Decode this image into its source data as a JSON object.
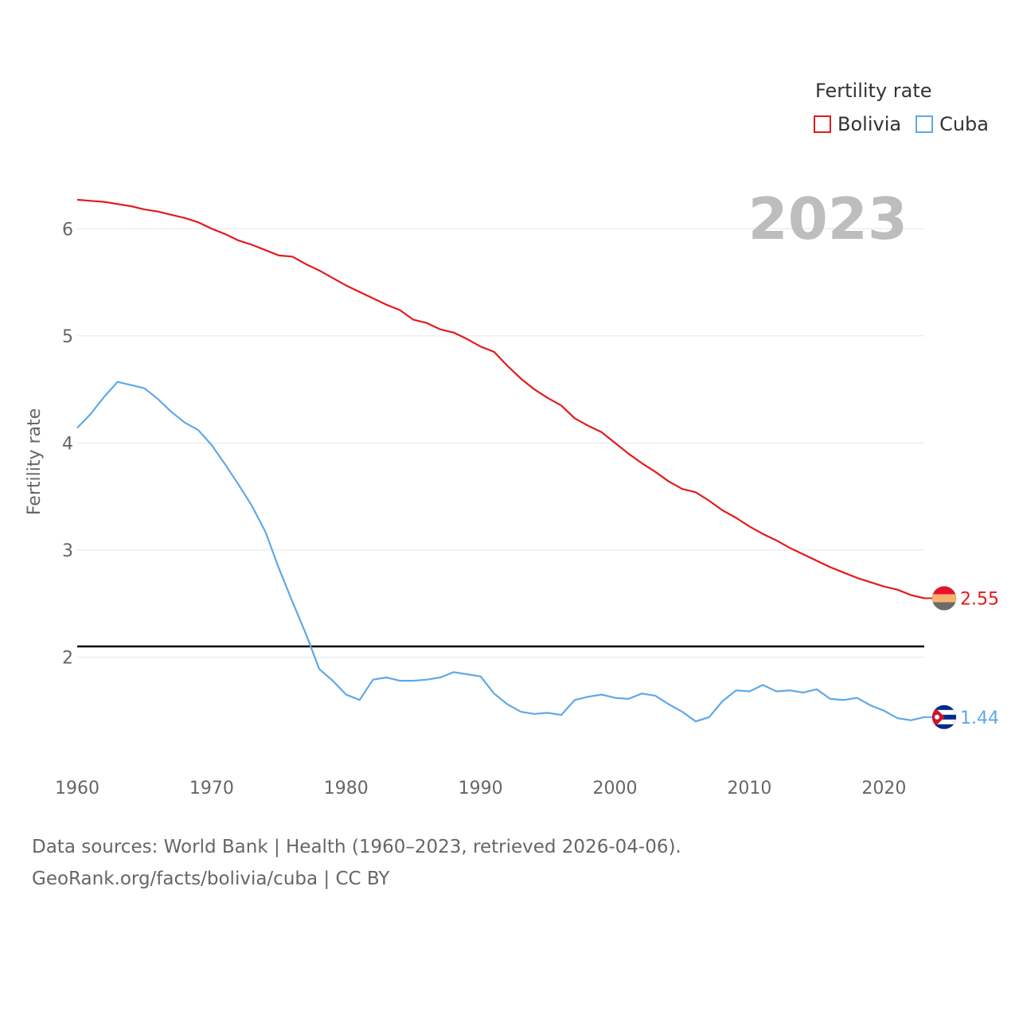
{
  "legend": {
    "title": "Fertility rate",
    "items": [
      {
        "label": "Bolivia",
        "color": "#e41a1c"
      },
      {
        "label": "Cuba",
        "color": "#5fa8e8"
      }
    ]
  },
  "footer": {
    "sources": "Data sources: World Bank | Health (1960–2023, retrieved 2026-04-06).",
    "credit": "GeoRank.org/facts/bolivia/cuba | CC BY"
  },
  "chart_data": {
    "type": "line",
    "year_label": "2023",
    "ylabel": "Fertility rate",
    "xlim": [
      1960,
      2023
    ],
    "ylim": [
      1.0,
      6.5
    ],
    "x_ticks": [
      1960,
      1970,
      1980,
      1990,
      2000,
      2010,
      2020
    ],
    "y_ticks": [
      2,
      3,
      4,
      5,
      6
    ],
    "reference_line": 2.1,
    "x": [
      1960,
      1961,
      1962,
      1963,
      1964,
      1965,
      1966,
      1967,
      1968,
      1969,
      1970,
      1971,
      1972,
      1973,
      1974,
      1975,
      1976,
      1977,
      1978,
      1979,
      1980,
      1981,
      1982,
      1983,
      1984,
      1985,
      1986,
      1987,
      1988,
      1989,
      1990,
      1991,
      1992,
      1993,
      1994,
      1995,
      1996,
      1997,
      1998,
      1999,
      2000,
      2001,
      2002,
      2003,
      2004,
      2005,
      2006,
      2007,
      2008,
      2009,
      2010,
      2011,
      2012,
      2013,
      2014,
      2015,
      2016,
      2017,
      2018,
      2019,
      2020,
      2021,
      2022,
      2023
    ],
    "series": [
      {
        "name": "Bolivia",
        "color": "#e41a1c",
        "end_label": "2.55",
        "values": [
          6.27,
          6.26,
          6.25,
          6.23,
          6.21,
          6.18,
          6.16,
          6.13,
          6.1,
          6.06,
          6.0,
          5.95,
          5.89,
          5.85,
          5.8,
          5.75,
          5.74,
          5.67,
          5.61,
          5.54,
          5.47,
          5.41,
          5.35,
          5.29,
          5.24,
          5.15,
          5.12,
          5.06,
          5.03,
          4.97,
          4.9,
          4.85,
          4.72,
          4.6,
          4.5,
          4.42,
          4.35,
          4.23,
          4.16,
          4.1,
          4.0,
          3.9,
          3.81,
          3.73,
          3.64,
          3.57,
          3.54,
          3.46,
          3.37,
          3.3,
          3.22,
          3.15,
          3.09,
          3.02,
          2.96,
          2.9,
          2.84,
          2.79,
          2.74,
          2.7,
          2.66,
          2.63,
          2.58,
          2.55
        ]
      },
      {
        "name": "Cuba",
        "color": "#5fa8e8",
        "end_label": "1.44",
        "values": [
          4.14,
          4.27,
          4.43,
          4.57,
          4.54,
          4.51,
          4.41,
          4.29,
          4.19,
          4.12,
          3.98,
          3.8,
          3.61,
          3.41,
          3.17,
          2.83,
          2.52,
          2.22,
          1.89,
          1.78,
          1.65,
          1.6,
          1.79,
          1.81,
          1.78,
          1.78,
          1.79,
          1.81,
          1.86,
          1.84,
          1.82,
          1.66,
          1.56,
          1.49,
          1.47,
          1.48,
          1.46,
          1.6,
          1.63,
          1.65,
          1.62,
          1.61,
          1.66,
          1.64,
          1.56,
          1.49,
          1.4,
          1.44,
          1.59,
          1.69,
          1.68,
          1.74,
          1.68,
          1.69,
          1.67,
          1.7,
          1.61,
          1.6,
          1.62,
          1.55,
          1.5,
          1.43,
          1.41,
          1.44
        ]
      }
    ]
  }
}
